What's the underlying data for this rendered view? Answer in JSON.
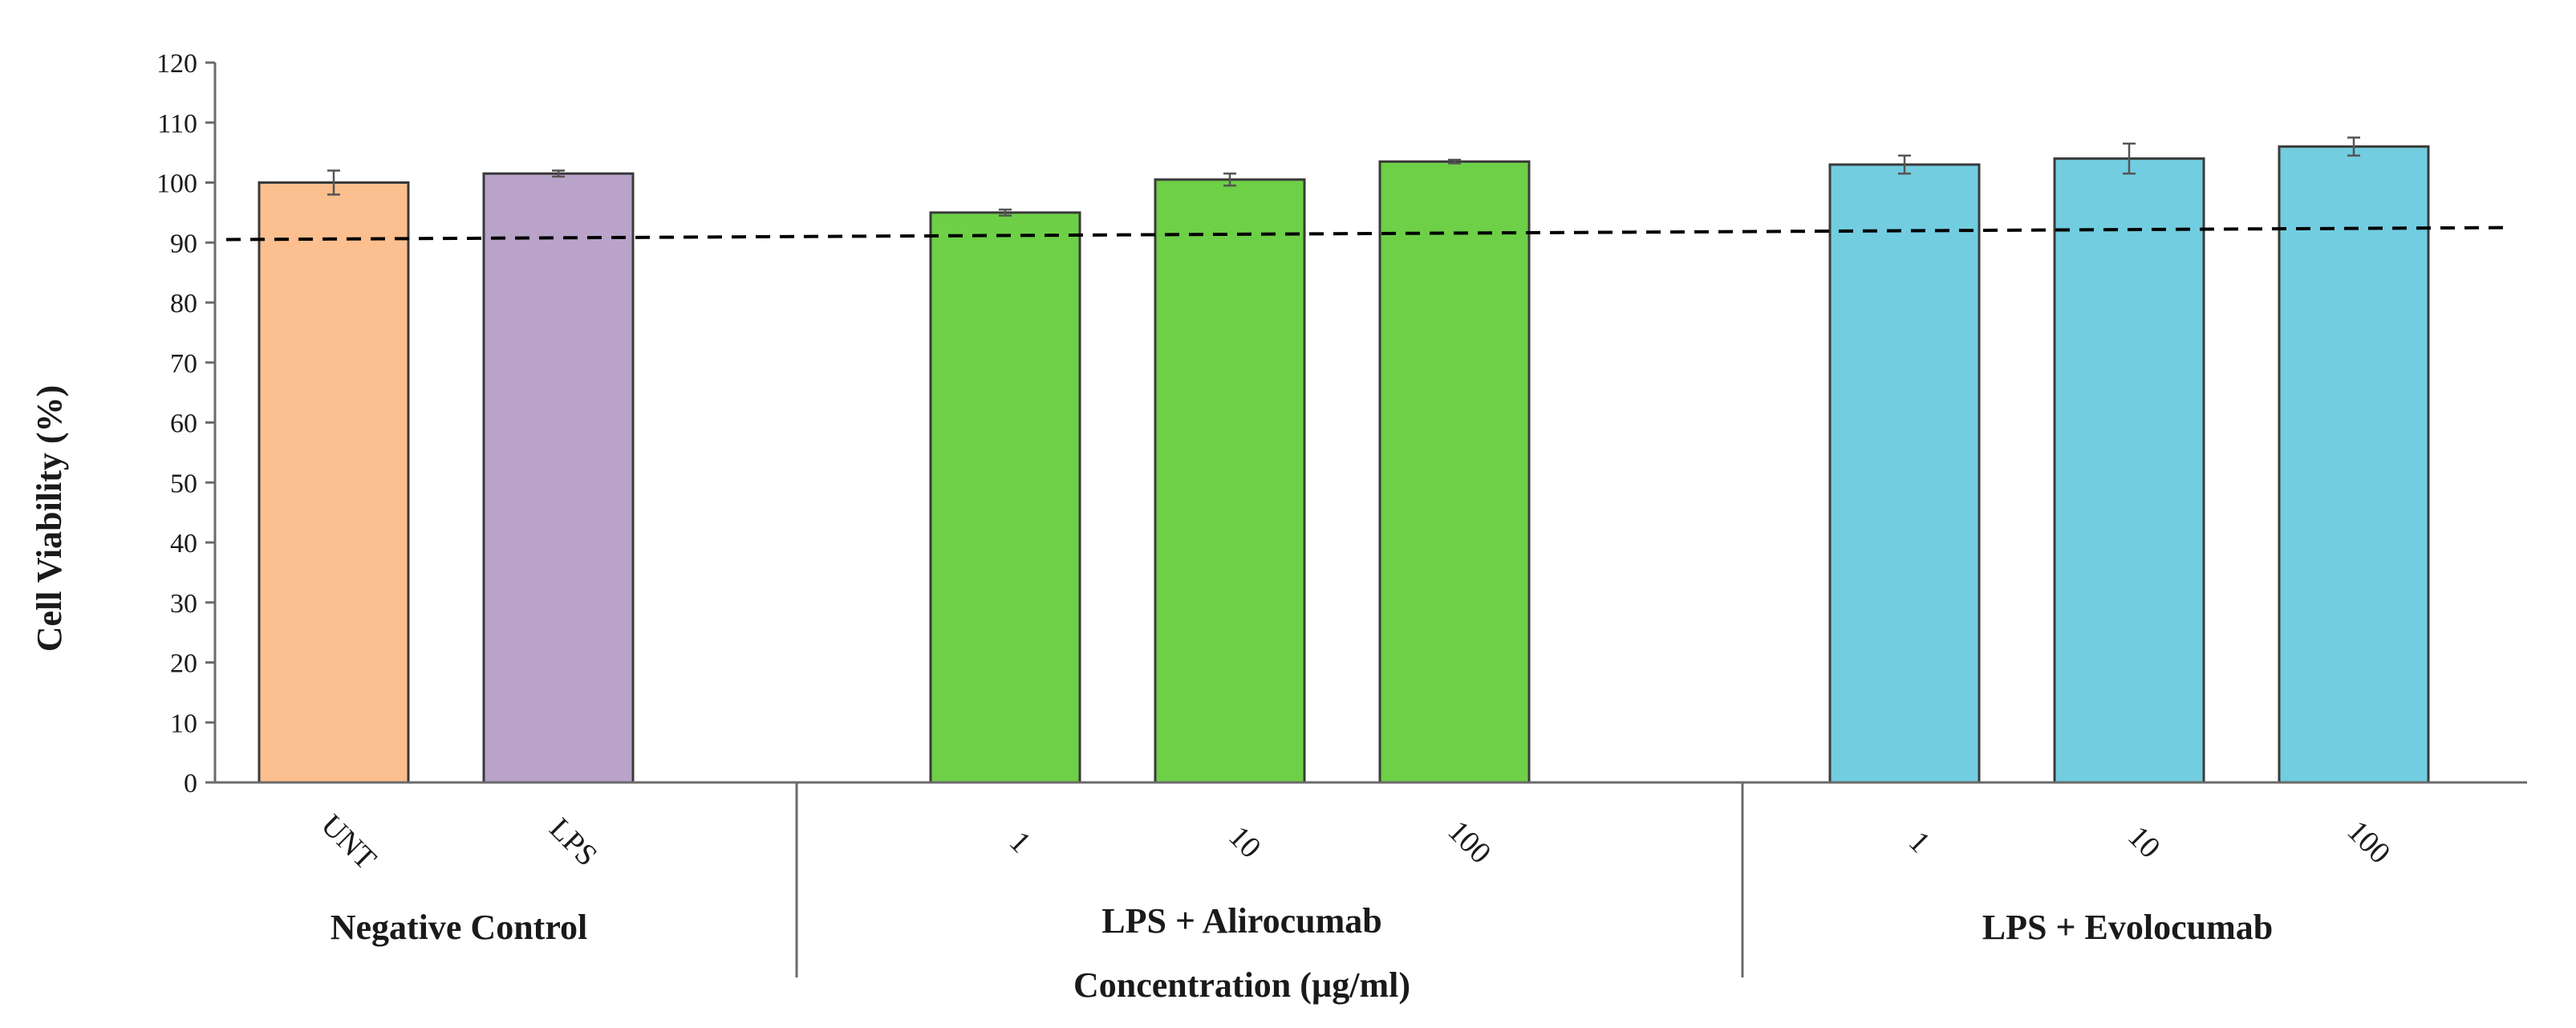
{
  "chart_data": {
    "type": "bar",
    "ylabel": "Cell Viability (%)",
    "xlabel": "Concentration (µg/ml)",
    "ylim": [
      0,
      120
    ],
    "yticks": [
      "0",
      "10",
      "20",
      "30",
      "40",
      "50",
      "60",
      "70",
      "80",
      "90",
      "100",
      "110",
      "120"
    ],
    "grid": false,
    "groups": [
      {
        "name": "Negative Control",
        "bars": [
          {
            "label": "UNT",
            "value": 100,
            "error": 2,
            "color": "#fcbf8f"
          },
          {
            "label": "LPS",
            "value": 101.5,
            "error": 0.5,
            "color": "#b9a3c9"
          }
        ]
      },
      {
        "name": "LPS + Alirocumab",
        "bars": [
          {
            "label": "1",
            "value": 95,
            "error": 0.5,
            "color": "#6dd047"
          },
          {
            "label": "10",
            "value": 100.5,
            "error": 1,
            "color": "#6dd047"
          },
          {
            "label": "100",
            "value": 103.5,
            "error": 0.3,
            "color": "#6dd047"
          }
        ]
      },
      {
        "name": "LPS + Evolocumab",
        "bars": [
          {
            "label": "1",
            "value": 103,
            "error": 1.5,
            "color": "#72cde0"
          },
          {
            "label": "10",
            "value": 104,
            "error": 2.5,
            "color": "#72cde0"
          },
          {
            "label": "100",
            "value": 106,
            "error": 1.5,
            "color": "#72cde0"
          }
        ]
      }
    ],
    "reference_line": {
      "y_start": 90.5,
      "y_end": 92.5,
      "style": "dashed",
      "color": "#000000"
    }
  }
}
